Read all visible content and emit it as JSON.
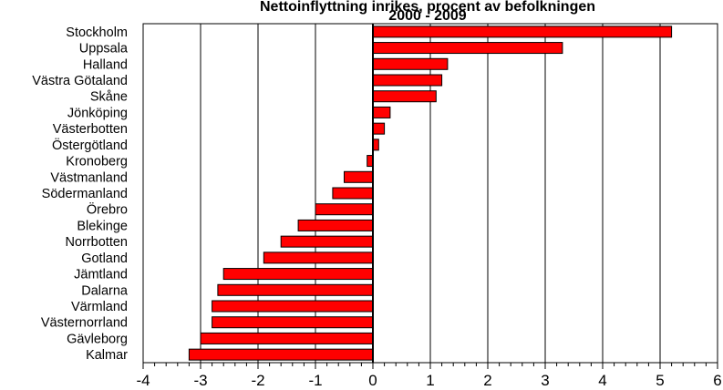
{
  "chart_data": {
    "type": "bar",
    "orientation": "horizontal",
    "title": "Nettoinflyttning inrikes, procent av befolkningen",
    "subtitle": "2000 - 2009",
    "categories": [
      "Stockholm",
      "Uppsala",
      "Halland",
      "Västra Götaland",
      "Skåne",
      "Jönköping",
      "Västerbotten",
      "Östergötland",
      "Kronoberg",
      "Västmanland",
      "Södermanland",
      "Örebro",
      "Blekinge",
      "Norrbotten",
      "Gotland",
      "Jämtland",
      "Dalarna",
      "Värmland",
      "Västernorrland",
      "Gävleborg",
      "Kalmar"
    ],
    "values": [
      5.2,
      3.3,
      1.3,
      1.2,
      1.1,
      0.3,
      0.2,
      0.1,
      -0.1,
      -0.5,
      -0.7,
      -1.0,
      -1.3,
      -1.6,
      -1.9,
      -2.6,
      -2.7,
      -2.8,
      -2.8,
      -3.0,
      -3.2
    ],
    "xlim": [
      -4,
      6
    ],
    "xticks": [
      "-4",
      "-3",
      "-2",
      "-1",
      "0",
      "1",
      "2",
      "3",
      "4",
      "5",
      "6"
    ],
    "xlabel": "",
    "ylabel": "",
    "grid": "vertical",
    "bar_color": "#ff0000",
    "legend": "none"
  }
}
